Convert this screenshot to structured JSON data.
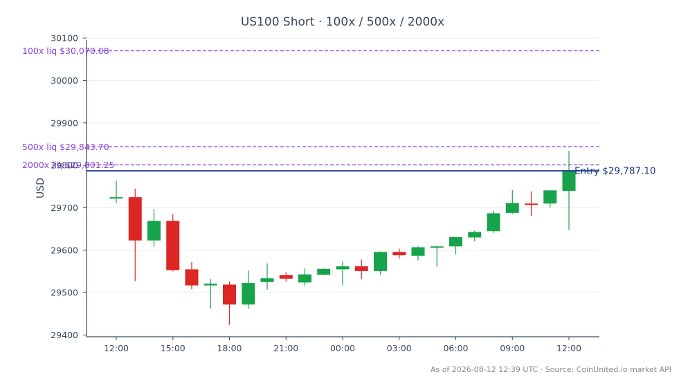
{
  "chart_data": {
    "type": "candlestick",
    "title": "US100 Short · 100x / 500x / 2000x",
    "ylabel": "USD",
    "ylim": [
      29396,
      30105
    ],
    "yticks": [
      29400,
      29500,
      29600,
      29700,
      29800,
      29900,
      30000,
      30100
    ],
    "xtick_labels": [
      "12:00",
      "15:00",
      "18:00",
      "21:00",
      "00:00",
      "03:00",
      "06:00",
      "09:00",
      "12:00"
    ],
    "xtick_index": [
      0,
      3,
      6,
      9,
      12,
      15,
      18,
      21,
      24
    ],
    "up_color": "#16a34a",
    "down_color": "#dc2626",
    "candles": [
      {
        "t": "12:00",
        "o": 29724,
        "h": 29764,
        "l": 29711,
        "c": 29725
      },
      {
        "t": "13:00",
        "o": 29725,
        "h": 29745,
        "l": 29527,
        "c": 29623
      },
      {
        "t": "14:00",
        "o": 29623,
        "h": 29697,
        "l": 29608,
        "c": 29669
      },
      {
        "t": "15:00",
        "o": 29669,
        "h": 29685,
        "l": 29550,
        "c": 29553
      },
      {
        "t": "16:00",
        "o": 29555,
        "h": 29572,
        "l": 29508,
        "c": 29517
      },
      {
        "t": "17:00",
        "o": 29517,
        "h": 29532,
        "l": 29462,
        "c": 29521
      },
      {
        "t": "18:00",
        "o": 29519,
        "h": 29526,
        "l": 29424,
        "c": 29472
      },
      {
        "t": "19:00",
        "o": 29472,
        "h": 29552,
        "l": 29462,
        "c": 29523
      },
      {
        "t": "20:00",
        "o": 29525,
        "h": 29569,
        "l": 29507,
        "c": 29534
      },
      {
        "t": "21:00",
        "o": 29541,
        "h": 29548,
        "l": 29526,
        "c": 29533
      },
      {
        "t": "22:00",
        "o": 29524,
        "h": 29557,
        "l": 29516,
        "c": 29543
      },
      {
        "t": "23:00",
        "o": 29542,
        "h": 29557,
        "l": 29541,
        "c": 29556
      },
      {
        "t": "00:00",
        "o": 29555,
        "h": 29573,
        "l": 29518,
        "c": 29562
      },
      {
        "t": "01:00",
        "o": 29562,
        "h": 29578,
        "l": 29532,
        "c": 29551
      },
      {
        "t": "02:00",
        "o": 29551,
        "h": 29597,
        "l": 29542,
        "c": 29596
      },
      {
        "t": "03:00",
        "o": 29596,
        "h": 29604,
        "l": 29580,
        "c": 29588
      },
      {
        "t": "04:00",
        "o": 29587,
        "h": 29609,
        "l": 29576,
        "c": 29607
      },
      {
        "t": "05:00",
        "o": 29607,
        "h": 29610,
        "l": 29561,
        "c": 29609
      },
      {
        "t": "06:00",
        "o": 29609,
        "h": 29631,
        "l": 29590,
        "c": 29631
      },
      {
        "t": "07:00",
        "o": 29630,
        "h": 29646,
        "l": 29621,
        "c": 29643
      },
      {
        "t": "08:00",
        "o": 29645,
        "h": 29693,
        "l": 29641,
        "c": 29687
      },
      {
        "t": "09:00",
        "o": 29688,
        "h": 29742,
        "l": 29686,
        "c": 29711
      },
      {
        "t": "10:00",
        "o": 29710,
        "h": 29739,
        "l": 29681,
        "c": 29708
      },
      {
        "t": "11:00",
        "o": 29710,
        "h": 29741,
        "l": 29700,
        "c": 29741
      },
      {
        "t": "12:00",
        "o": 29740,
        "h": 29834,
        "l": 29648,
        "c": 29788
      }
    ],
    "levels": [
      {
        "label": "100x liq $30,070.08",
        "value": 30070.08,
        "color": "#8b3fd9",
        "style": "dashed"
      },
      {
        "label": "500x liq $29,843.70",
        "value": 29843.7,
        "color": "#8b3fd9",
        "style": "dashed"
      },
      {
        "label": "2000x liq $29,801.25",
        "value": 29801.25,
        "color": "#8b3fd9",
        "style": "dashed"
      }
    ],
    "entry": {
      "label": "Entry $29,787.10",
      "value": 29787.1,
      "color": "#1e3a8a"
    },
    "grid": true,
    "legend": "none"
  },
  "footer": {
    "source": "As of 2026-08-12 12:39 UTC · Source: CoinUnited.io market API"
  }
}
